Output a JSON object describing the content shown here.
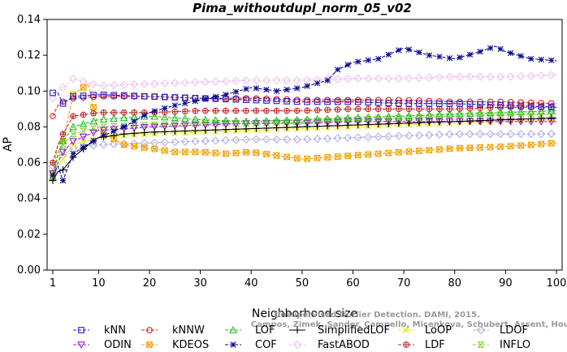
{
  "chart_data": {
    "type": "line",
    "title": "Pima_withoutdupl_norm_05_v02",
    "xlabel": "Neighborhood size",
    "ylabel": "AP",
    "xlim": [
      1,
      100
    ],
    "ylim": [
      0.0,
      0.14
    ],
    "x_ticks": [
      1,
      10,
      20,
      30,
      40,
      50,
      60,
      70,
      80,
      90,
      100
    ],
    "y_ticks": [
      "0.00",
      "0.02",
      "0.04",
      "0.06",
      "0.08",
      "0.10",
      "0.12",
      "0.14"
    ],
    "grid": false,
    "legend_position": "bottom",
    "watermark": [
      "Campos, Zimek, Sander, Campello, Micenkova, Schubert, Assent, Houle",
      "Unsupervised Outlier Detection. DAMI, 2015."
    ],
    "series": [
      {
        "name": "kNN",
        "color": "#1f1fd0",
        "marker": "square",
        "x": [
          1,
          2,
          3,
          5,
          10,
          20,
          30,
          40,
          50,
          60,
          70,
          80,
          90,
          100
        ],
        "y": [
          0.099,
          0.099,
          0.093,
          0.097,
          0.098,
          0.097,
          0.096,
          0.095,
          0.094,
          0.094,
          0.093,
          0.093,
          0.092,
          0.091
        ]
      },
      {
        "name": "kNNW",
        "color": "#e02020",
        "marker": "circle",
        "x": [
          1,
          2,
          3,
          5,
          10,
          20,
          30,
          40,
          50,
          60,
          70,
          80,
          90,
          100
        ],
        "y": [
          0.086,
          0.092,
          0.094,
          0.096,
          0.097,
          0.097,
          0.096,
          0.096,
          0.095,
          0.095,
          0.095,
          0.094,
          0.094,
          0.093
        ]
      },
      {
        "name": "LOF",
        "color": "#20c020",
        "marker": "triangle",
        "x": [
          1,
          2,
          3,
          5,
          10,
          15,
          20,
          30,
          40,
          50,
          60,
          70,
          80,
          90,
          100
        ],
        "y": [
          0.052,
          0.065,
          0.072,
          0.08,
          0.084,
          0.085,
          0.086,
          0.084,
          0.083,
          0.084,
          0.085,
          0.086,
          0.087,
          0.088,
          0.089
        ]
      },
      {
        "name": "SimplifiedLOF",
        "color": "#000000",
        "marker": "plus",
        "x": [
          1,
          2,
          3,
          5,
          8,
          10,
          15,
          20,
          30,
          40,
          50,
          60,
          70,
          80,
          90,
          100
        ],
        "y": [
          0.05,
          0.055,
          0.056,
          0.063,
          0.07,
          0.074,
          0.076,
          0.077,
          0.078,
          0.079,
          0.08,
          0.081,
          0.082,
          0.083,
          0.084,
          0.085
        ]
      },
      {
        "name": "LoOP",
        "color": "#e6e600",
        "marker": "x",
        "x": [
          1,
          2,
          3,
          5,
          10,
          20,
          30,
          40,
          50,
          60,
          70,
          80,
          90,
          100
        ],
        "y": [
          0.055,
          0.058,
          0.062,
          0.07,
          0.074,
          0.076,
          0.077,
          0.078,
          0.079,
          0.08,
          0.081,
          0.082,
          0.083,
          0.084
        ]
      },
      {
        "name": "LDOF",
        "color": "#b0b0e8",
        "marker": "diamond",
        "x": [
          1,
          2,
          3,
          5,
          10,
          20,
          30,
          40,
          50,
          60,
          70,
          80,
          90,
          100
        ],
        "y": [
          0.058,
          0.062,
          0.064,
          0.068,
          0.07,
          0.071,
          0.072,
          0.073,
          0.073,
          0.074,
          0.075,
          0.076,
          0.076,
          0.076
        ]
      },
      {
        "name": "ODIN",
        "color": "#a020d0",
        "marker": "down-triangle",
        "x": [
          1,
          2,
          3,
          5,
          10,
          20,
          30,
          40,
          50,
          60,
          70,
          80,
          90,
          100
        ],
        "y": [
          0.054,
          0.06,
          0.066,
          0.072,
          0.078,
          0.08,
          0.081,
          0.082,
          0.082,
          0.083,
          0.083,
          0.083,
          0.083,
          0.083
        ]
      },
      {
        "name": "KDEOS",
        "color": "#f0a000",
        "marker": "boxed-x",
        "x": [
          1,
          2,
          3,
          5,
          8,
          10,
          15,
          20,
          25,
          30,
          35,
          40,
          45,
          50,
          55,
          60,
          70,
          80,
          90,
          100
        ],
        "y": [
          0.054,
          0.07,
          0.072,
          0.098,
          0.104,
          0.078,
          0.07,
          0.068,
          0.066,
          0.066,
          0.065,
          0.066,
          0.064,
          0.062,
          0.063,
          0.064,
          0.066,
          0.068,
          0.069,
          0.071
        ]
      },
      {
        "name": "COF",
        "color": "#0a0a90",
        "marker": "star",
        "x": [
          1,
          2,
          3,
          5,
          10,
          15,
          20,
          25,
          30,
          35,
          40,
          45,
          50,
          55,
          57,
          60,
          65,
          70,
          75,
          80,
          85,
          88,
          90,
          95,
          100
        ],
        "y": [
          0.053,
          0.058,
          0.05,
          0.065,
          0.074,
          0.08,
          0.088,
          0.092,
          0.095,
          0.098,
          0.102,
          0.1,
          0.102,
          0.106,
          0.112,
          0.116,
          0.118,
          0.124,
          0.12,
          0.118,
          0.122,
          0.125,
          0.122,
          0.118,
          0.117
        ]
      },
      {
        "name": "FastABOD",
        "color": "#f0c0f0",
        "marker": "diamond",
        "x": [
          1,
          2,
          3,
          5,
          10,
          20,
          30,
          40,
          50,
          60,
          70,
          80,
          90,
          100
        ],
        "y": [
          0.096,
          0.1,
          0.102,
          0.107,
          0.103,
          0.104,
          0.105,
          0.106,
          0.106,
          0.107,
          0.107,
          0.108,
          0.108,
          0.109
        ]
      },
      {
        "name": "LDF",
        "color": "#c03030",
        "marker": "circle-plus",
        "x": [
          1,
          2,
          3,
          5,
          10,
          20,
          30,
          40,
          50,
          60,
          70,
          80,
          90,
          100
        ],
        "y": [
          0.06,
          0.07,
          0.076,
          0.086,
          0.088,
          0.088,
          0.089,
          0.089,
          0.089,
          0.09,
          0.09,
          0.09,
          0.091,
          0.091
        ]
      },
      {
        "name": "INFLO",
        "color": "#90d040",
        "marker": "hourglass",
        "x": [
          1,
          2,
          3,
          5,
          10,
          20,
          30,
          40,
          50,
          60,
          70,
          80,
          90,
          100
        ],
        "y": [
          0.052,
          0.063,
          0.07,
          0.076,
          0.08,
          0.081,
          0.082,
          0.082,
          0.083,
          0.084,
          0.085,
          0.086,
          0.087,
          0.087
        ]
      }
    ]
  }
}
